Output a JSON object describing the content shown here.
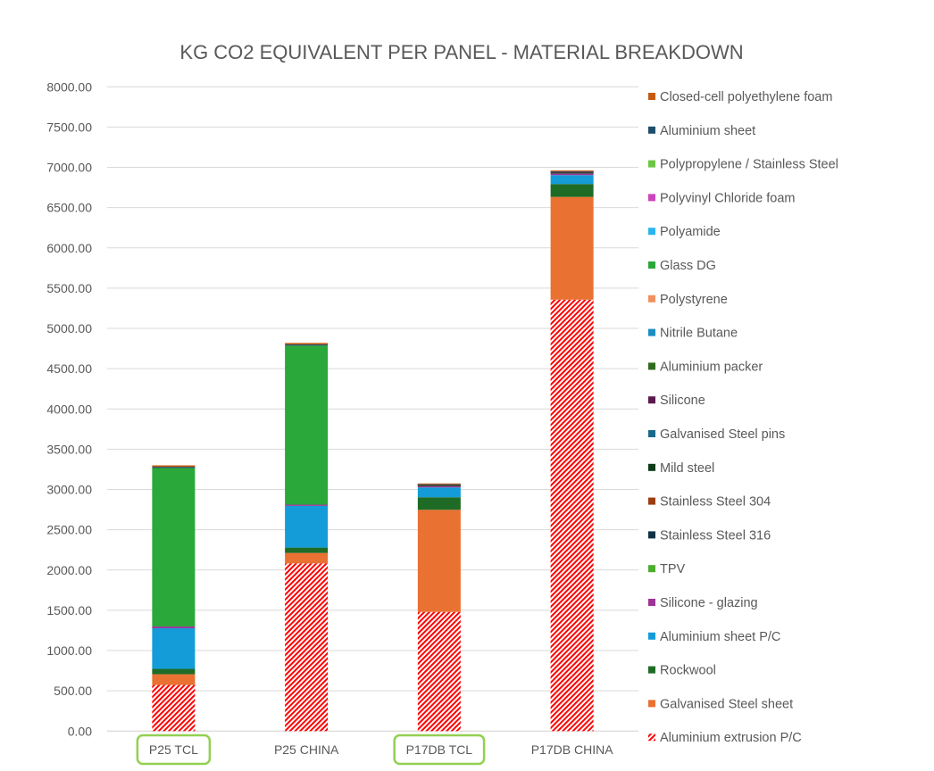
{
  "chart_data": {
    "type": "bar",
    "stacked": true,
    "title": "KG CO2 EQUIVALENT PER PANEL - MATERIAL BREAKDOWN",
    "xlabel": "",
    "ylabel": "",
    "ylim": [
      0,
      8000
    ],
    "yticks": [
      "0.00",
      "500.00",
      "1000.00",
      "1500.00",
      "2000.00",
      "2500.00",
      "3000.00",
      "3500.00",
      "4000.00",
      "4500.00",
      "5000.00",
      "5500.00",
      "6000.00",
      "6500.00",
      "7000.00",
      "7500.00",
      "8000.00"
    ],
    "grid": true,
    "legend_position": "right",
    "categories": [
      "P25 TCL",
      "P25 CHINA",
      "P17DB TCL",
      "P17DB CHINA"
    ],
    "highlighted_categories": [
      "P25 TCL",
      "P17DB TCL"
    ],
    "highlight_color": "#92D050",
    "series": [
      {
        "name": "Aluminium extrusion P/C",
        "color": "#FF0000",
        "pattern": "hatched",
        "values": [
          573,
          2083,
          1480,
          5357
        ]
      },
      {
        "name": "Galvanised Steel sheet",
        "color": "#E97132",
        "values": [
          133,
          129,
          1268,
          1276
        ]
      },
      {
        "name": "Rockwool",
        "color": "#1E6B26",
        "values": [
          67,
          67,
          156,
          160
        ]
      },
      {
        "name": "Aluminium sheet P/C",
        "color": "#139CD8",
        "values": [
          504,
          518,
          122,
          111
        ]
      },
      {
        "name": "Silicone - glazing",
        "color": "#9E3397",
        "values": [
          22,
          15,
          19,
          22
        ]
      },
      {
        "name": "TPV",
        "color": "#4CAE2E",
        "values": [
          0,
          0,
          5,
          6
        ]
      },
      {
        "name": "Stainless Steel 316",
        "color": "#0F3146",
        "values": [
          0,
          0,
          3,
          3
        ]
      },
      {
        "name": "Stainless Steel 304",
        "color": "#9C3D10",
        "values": [
          0,
          0,
          5,
          6
        ]
      },
      {
        "name": "Mild steel",
        "color": "#0D3B17",
        "values": [
          0,
          0,
          3,
          3
        ]
      },
      {
        "name": "Galvanised Steel pins",
        "color": "#1B6A8A",
        "values": [
          0,
          0,
          2,
          2
        ]
      },
      {
        "name": "Silicone",
        "color": "#5B1A4F",
        "values": [
          0,
          0,
          3,
          3
        ]
      },
      {
        "name": "Aluminium packer",
        "color": "#2E6B1E",
        "values": [
          0,
          0,
          4,
          5
        ]
      },
      {
        "name": "Nitrile Butane",
        "color": "#1E8BC3",
        "values": [
          0,
          0,
          2,
          2
        ]
      },
      {
        "name": "Polystyrene",
        "color": "#F0915E",
        "values": [
          0,
          0,
          2,
          3
        ]
      },
      {
        "name": "Glass DG",
        "color": "#2AA83A",
        "values": [
          1968,
          1975,
          0,
          0
        ]
      },
      {
        "name": "Polyamide",
        "color": "#2BB5EE",
        "values": [
          0,
          0,
          0,
          0
        ]
      },
      {
        "name": "Polyvinyl Chloride foam",
        "color": "#CC44BB",
        "values": [
          0,
          0,
          0,
          0
        ]
      },
      {
        "name": "Polypropylene / Stainless Steel",
        "color": "#6CC644",
        "values": [
          0,
          0,
          0,
          0
        ]
      },
      {
        "name": "Aluminium sheet",
        "color": "#1F4E6B",
        "values": [
          15,
          15,
          0,
          0
        ]
      },
      {
        "name": "Closed-cell polyethylene foam",
        "color": "#C55A11",
        "values": [
          18,
          18,
          1,
          4
        ]
      }
    ]
  }
}
